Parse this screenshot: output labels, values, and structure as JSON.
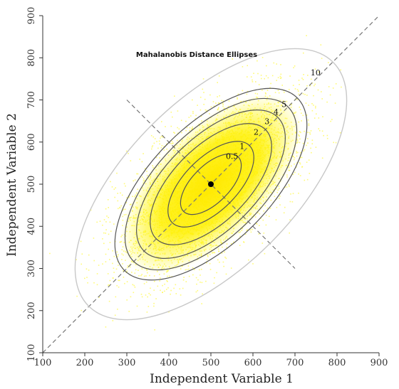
{
  "chart_data": {
    "type": "scatter",
    "title": "Mahalanobis Distance Ellipses",
    "xlabel": "Independent Variable 1",
    "ylabel": "Independent Variable 2",
    "xlim": [
      100,
      900
    ],
    "ylim": [
      100,
      900
    ],
    "xticks": [
      "100",
      "200",
      "300",
      "400",
      "500",
      "600",
      "700",
      "800",
      "900"
    ],
    "yticks": [
      "100",
      "200",
      "300",
      "400",
      "500",
      "600",
      "700",
      "800",
      "900"
    ],
    "grid": false,
    "legend": "none",
    "center": {
      "x": 500,
      "y": 500
    },
    "point_cloud": {
      "approx_count": 5000,
      "mean": [
        500,
        500
      ],
      "sd_major_axis": 130,
      "sd_minor_axis": 63,
      "major_axis_direction": "diagonal y = x",
      "color": "#fff84a"
    },
    "ellipse_levels": [
      {
        "label": "0.5",
        "distance": 0.5
      },
      {
        "label": "1",
        "distance": 1
      },
      {
        "label": "2",
        "distance": 2
      },
      {
        "label": "3",
        "distance": 3
      },
      {
        "label": "4",
        "distance": 4
      },
      {
        "label": "5",
        "distance": 5
      },
      {
        "label": "10",
        "distance": 10
      }
    ],
    "reference_lines": [
      {
        "name": "major-axis",
        "from": [
          100,
          100
        ],
        "to": [
          900,
          900
        ]
      },
      {
        "name": "minor-axis",
        "from": [
          300,
          700
        ],
        "to": [
          700,
          300
        ]
      }
    ],
    "colors": {
      "points": "#fff84a",
      "core_fill": "#ffea00",
      "ellipse_line": "#555555",
      "outer_ellipse_line": "#c8c8c8",
      "center_point": "#000000",
      "reference_line": "#777777"
    }
  }
}
